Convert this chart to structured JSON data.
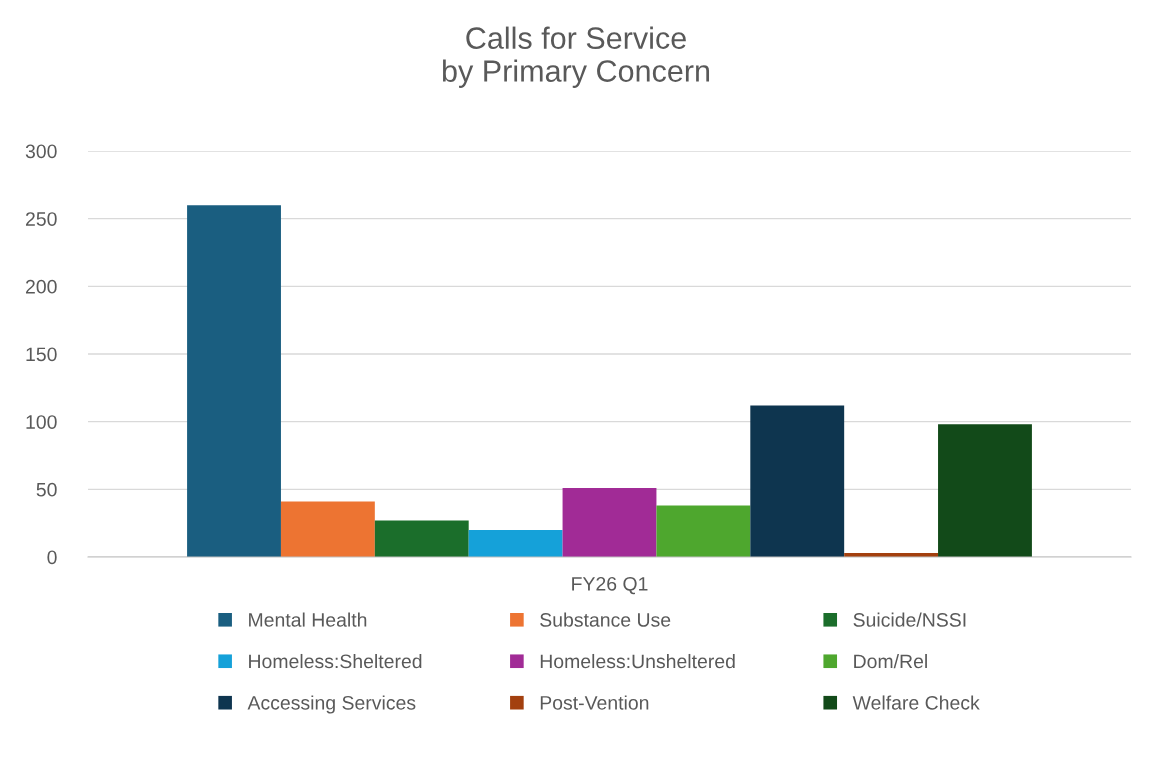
{
  "chart_data": {
    "type": "bar",
    "title": "Calls for Service\nby Primary Concern",
    "categories": [
      "FY26 Q1"
    ],
    "series": [
      {
        "name": "Mental Health",
        "color": "#1a5e80",
        "values": [
          260
        ]
      },
      {
        "name": "Substance Use",
        "color": "#ed7432",
        "values": [
          41
        ]
      },
      {
        "name": "Suicide/NSSI",
        "color": "#1b6e2b",
        "values": [
          27
        ]
      },
      {
        "name": "Homeless:Sheltered",
        "color": "#15a1d9",
        "values": [
          20
        ]
      },
      {
        "name": "Homeless:Unsheltered",
        "color": "#a12b96",
        "values": [
          51
        ]
      },
      {
        "name": "Dom/Rel",
        "color": "#4ea72e",
        "values": [
          38
        ]
      },
      {
        "name": "Accessing Services",
        "color": "#0e354f",
        "values": [
          112
        ]
      },
      {
        "name": "Post-Vention",
        "color": "#a3400f",
        "values": [
          3
        ]
      },
      {
        "name": "Welfare Check",
        "color": "#124a19",
        "values": [
          98
        ]
      }
    ],
    "ylim": [
      0,
      300
    ],
    "yticks": [
      0,
      50,
      100,
      150,
      200,
      250,
      300
    ],
    "grid": "y",
    "legend": "bottom"
  }
}
